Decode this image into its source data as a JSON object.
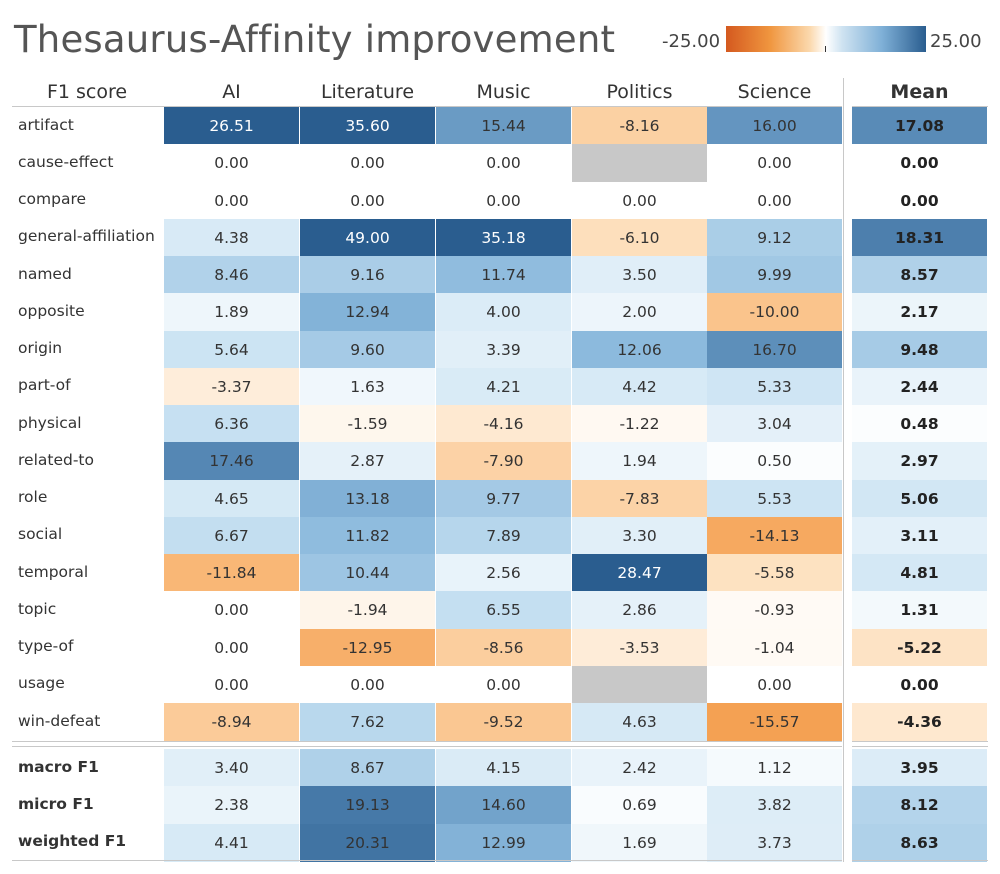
{
  "chart_data": {
    "type": "heatmap",
    "title": "Thesaurus-Affinity improvement",
    "corner_label": "F1 score",
    "columns": [
      "AI",
      "Literature",
      "Music",
      "Politics",
      "Science"
    ],
    "mean_label": "Mean",
    "color_scale": {
      "min_label": "-25.00",
      "max_label": "25.00",
      "min": -25,
      "max": 25,
      "neg_color": "#d4591f",
      "pos_color": "#2a5d8f",
      "missing_color": "#c8c8c8"
    },
    "rows": [
      {
        "label": "artifact",
        "values": [
          26.51,
          35.6,
          15.44,
          -8.16,
          16.0
        ],
        "mean": 17.08
      },
      {
        "label": "cause-effect",
        "values": [
          0.0,
          0.0,
          0.0,
          null,
          0.0
        ],
        "mean": 0.0
      },
      {
        "label": "compare",
        "values": [
          0.0,
          0.0,
          0.0,
          0.0,
          0.0
        ],
        "mean": 0.0
      },
      {
        "label": "general-affiliation",
        "values": [
          4.38,
          49.0,
          35.18,
          -6.1,
          9.12
        ],
        "mean": 18.31
      },
      {
        "label": "named",
        "values": [
          8.46,
          9.16,
          11.74,
          3.5,
          9.99
        ],
        "mean": 8.57
      },
      {
        "label": "opposite",
        "values": [
          1.89,
          12.94,
          4.0,
          2.0,
          -10.0
        ],
        "mean": 2.17
      },
      {
        "label": "origin",
        "values": [
          5.64,
          9.6,
          3.39,
          12.06,
          16.7
        ],
        "mean": 9.48
      },
      {
        "label": "part-of",
        "values": [
          -3.37,
          1.63,
          4.21,
          4.42,
          5.33
        ],
        "mean": 2.44
      },
      {
        "label": "physical",
        "values": [
          6.36,
          -1.59,
          -4.16,
          -1.22,
          3.04
        ],
        "mean": 0.48
      },
      {
        "label": "related-to",
        "values": [
          17.46,
          2.87,
          -7.9,
          1.94,
          0.5
        ],
        "mean": 2.97
      },
      {
        "label": "role",
        "values": [
          4.65,
          13.18,
          9.77,
          -7.83,
          5.53
        ],
        "mean": 5.06
      },
      {
        "label": "social",
        "values": [
          6.67,
          11.82,
          7.89,
          3.3,
          -14.13
        ],
        "mean": 3.11
      },
      {
        "label": "temporal",
        "values": [
          -11.84,
          10.44,
          2.56,
          28.47,
          -5.58
        ],
        "mean": 4.81
      },
      {
        "label": "topic",
        "values": [
          0.0,
          -1.94,
          6.55,
          2.86,
          -0.93
        ],
        "mean": 1.31
      },
      {
        "label": "type-of",
        "values": [
          0.0,
          -12.95,
          -8.56,
          -3.53,
          -1.04
        ],
        "mean": -5.22
      },
      {
        "label": "usage",
        "values": [
          0.0,
          0.0,
          0.0,
          null,
          0.0
        ],
        "mean": 0.0
      },
      {
        "label": "win-defeat",
        "values": [
          -8.94,
          7.62,
          -9.52,
          4.63,
          -15.57
        ],
        "mean": -4.36
      }
    ],
    "summary_rows": [
      {
        "label": "macro F1",
        "values": [
          3.4,
          8.67,
          4.15,
          2.42,
          1.12
        ],
        "mean": 3.95
      },
      {
        "label": "micro F1",
        "values": [
          2.38,
          19.13,
          14.6,
          0.69,
          3.82
        ],
        "mean": 8.12
      },
      {
        "label": "weighted F1",
        "values": [
          4.41,
          20.31,
          12.99,
          1.69,
          3.73
        ],
        "mean": 8.63
      }
    ]
  }
}
